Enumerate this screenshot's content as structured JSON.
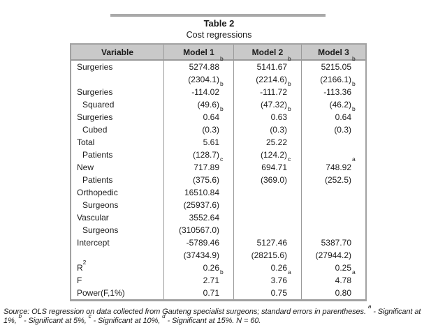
{
  "title": "Table 2",
  "subtitle": "Cost regressions",
  "table": {
    "headers": [
      "Variable",
      "Model 1",
      "Model 2",
      "Model 3"
    ],
    "rows": [
      {
        "variable": "Surgeries",
        "indent": false,
        "m1": "5274.88^b",
        "m2": "5141.67^b",
        "m3": "5215.05^b"
      },
      {
        "variable": "",
        "indent": false,
        "m1": "(2304.1)",
        "m2": "(2214.6)",
        "m3": "(2166.1)"
      },
      {
        "variable": "Surgeries",
        "indent": false,
        "m1": "-114.02^b",
        "m2": "-111.72^b",
        "m3": "-113.36^b"
      },
      {
        "variable": "Squared",
        "indent": true,
        "m1": "(49.6)",
        "m2": "(47.32)",
        "m3": "(46.2)"
      },
      {
        "variable": "Surgeries",
        "indent": false,
        "m1": "0.64^b",
        "m2": "0.63^b",
        "m3": "0.64^b"
      },
      {
        "variable": "Cubed",
        "indent": true,
        "m1": "(0.3)",
        "m2": "(0.3)",
        "m3": "(0.3)"
      },
      {
        "variable": "Total",
        "indent": false,
        "m1": "5.61",
        "m2": "25.22",
        "m3": ""
      },
      {
        "variable": "Patients",
        "indent": true,
        "m1": "(128.7)",
        "m2": "(124.2)",
        "m3": ""
      },
      {
        "variable": "New",
        "indent": false,
        "m1": "717.89^c",
        "m2": "694.71^c",
        "m3": "748.92^a"
      },
      {
        "variable": "Patients",
        "indent": true,
        "m1": "(375.6)",
        "m2": "(369.0)",
        "m3": "(252.5)"
      },
      {
        "variable": "Orthopedic",
        "indent": false,
        "m1": "16510.84",
        "m2": "",
        "m3": ""
      },
      {
        "variable": "Surgeons",
        "indent": true,
        "m1": "(25937.6)",
        "m2": "",
        "m3": ""
      },
      {
        "variable": "Vascular",
        "indent": false,
        "m1": "3552.64",
        "m2": "",
        "m3": ""
      },
      {
        "variable": "Surgeons",
        "indent": true,
        "m1": "(310567.0)",
        "m2": "",
        "m3": ""
      },
      {
        "variable": "Intercept",
        "indent": false,
        "m1": "-5789.46",
        "m2": "5127.46",
        "m3": "5387.70"
      },
      {
        "variable": "",
        "indent": false,
        "m1": "(37434.9)",
        "m2": "(28215.6)",
        "m3": "(27944.2)"
      },
      {
        "variable": "R^2",
        "indent": false,
        "m1": "0.26",
        "m2": "0.26",
        "m3": "0.25"
      },
      {
        "variable": "F",
        "indent": false,
        "m1": "2.71^b",
        "m2": "3.76^a",
        "m3": "4.78^a"
      },
      {
        "variable": "Power(F,1%)",
        "indent": false,
        "m1": "0.71",
        "m2": "0.75",
        "m3": "0.80"
      }
    ]
  },
  "footnote": "Source: OLS regression on data collected from Gauteng specialist surgeons; standard errors in parentheses. ^a - Significant at 1%, ^b - Significant at 5%, ^c - Significant at 10%, ^d - Significant at 15%. N = 60.",
  "colors": {
    "header_bg": "#c9c9c9",
    "table_border": "#a2a2a2",
    "divider": "#9a9a9a",
    "rule": "#a9a9a9"
  }
}
